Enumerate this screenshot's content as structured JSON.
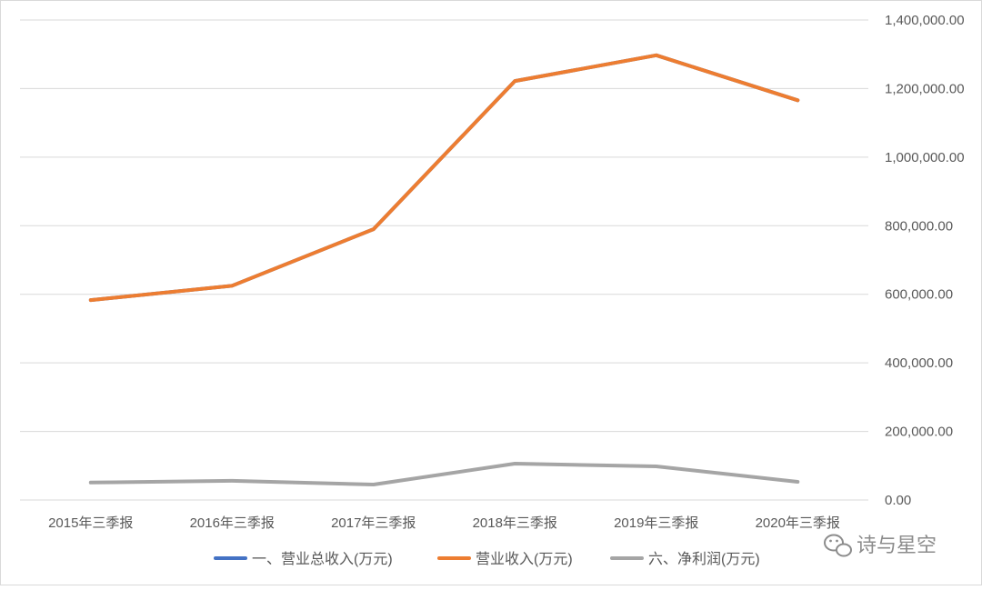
{
  "chart_data": {
    "type": "line",
    "categories": [
      "2015年三季报",
      "2016年三季报",
      "2017年三季报",
      "2018年三季报",
      "2019年三季报",
      "2020年三季报"
    ],
    "series": [
      {
        "name": "一、营业总收入(万元)",
        "color": "#4472c4",
        "values": [
          583000,
          625000,
          790000,
          1222000,
          1297000,
          1166000
        ]
      },
      {
        "name": "营业收入(万元)",
        "color": "#ed7d31",
        "values": [
          583000,
          625000,
          790000,
          1222000,
          1297000,
          1166000
        ]
      },
      {
        "name": "六、净利润(万元)",
        "color": "#a5a5a5",
        "values": [
          51000,
          56000,
          45000,
          106000,
          98000,
          53000
        ]
      }
    ],
    "y_axis": {
      "position": "right",
      "ylim": [
        0,
        1400000
      ],
      "ticks": [
        0,
        200000,
        400000,
        600000,
        800000,
        1000000,
        1200000,
        1400000
      ],
      "tick_labels": [
        "0.00",
        "200,000.00",
        "400,000.00",
        "600,000.00",
        "800,000.00",
        "1,000,000.00",
        "1,200,000.00",
        "1,400,000.00"
      ]
    },
    "grid": true,
    "legend_position": "bottom"
  },
  "watermark": {
    "text": "诗与星空",
    "icon": "wechat-icon"
  }
}
